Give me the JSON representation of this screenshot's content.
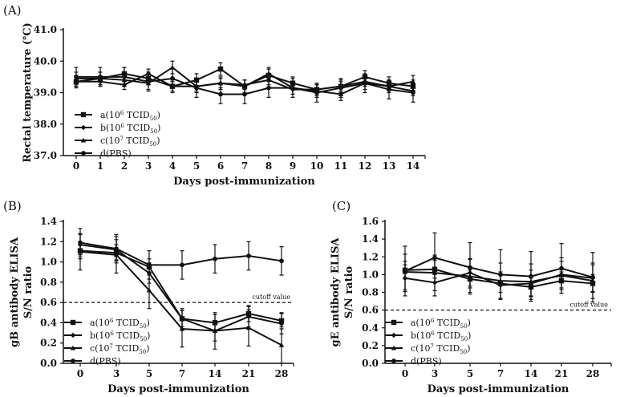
{
  "legend": [
    {
      "id": "a",
      "prefix": "a(10",
      "exp": "6",
      "mid": " TCID",
      "sub": "50",
      "suffix": ")",
      "marker": "square"
    },
    {
      "id": "b",
      "prefix": "b(10",
      "exp": "6",
      "mid": " TCID",
      "sub": "50",
      "suffix": ")",
      "marker": "diamond"
    },
    {
      "id": "c",
      "prefix": "c(10",
      "exp": "7",
      "mid": " TCID",
      "sub": "50",
      "suffix": ")",
      "marker": "triangle"
    },
    {
      "id": "d",
      "prefix": "d(PBS)",
      "exp": "",
      "mid": "",
      "sub": "",
      "suffix": "",
      "marker": "circle"
    }
  ],
  "chart_data": [
    {
      "panel": "(A)",
      "type": "line",
      "xlabel": "Days post-immunization",
      "ylabel": "Rectal temperature (℃)",
      "categories": [
        "0",
        "1",
        "2",
        "3",
        "4",
        "5",
        "6",
        "7",
        "8",
        "9",
        "10",
        "11",
        "12",
        "13",
        "14"
      ],
      "ylim": [
        37.0,
        41.0
      ],
      "yticks": [
        "37.0",
        "38.0",
        "39.0",
        "40.0",
        "41.0"
      ],
      "series": [
        {
          "name": "a",
          "values": [
            39.35,
            39.45,
            39.6,
            39.45,
            39.2,
            39.4,
            39.75,
            39.2,
            39.55,
            39.3,
            39.1,
            39.2,
            39.5,
            39.3,
            39.2
          ],
          "err": 0.2
        },
        {
          "name": "b",
          "values": [
            39.35,
            39.35,
            39.25,
            39.6,
            39.2,
            39.2,
            39.3,
            39.25,
            39.4,
            39.1,
            39.1,
            39.2,
            39.35,
            39.2,
            39.05
          ],
          "err": 0.15
        },
        {
          "name": "c",
          "values": [
            39.45,
            39.45,
            39.4,
            39.3,
            39.8,
            39.2,
            39.3,
            39.2,
            39.6,
            39.15,
            39.05,
            38.95,
            39.3,
            39.2,
            39.35
          ],
          "err": 0.2
        },
        {
          "name": "d",
          "values": [
            39.5,
            39.5,
            39.5,
            39.35,
            39.45,
            39.15,
            38.95,
            38.95,
            39.15,
            39.15,
            39.0,
            39.15,
            39.3,
            39.1,
            39.0
          ],
          "err": 0.3
        }
      ]
    },
    {
      "panel": "(B)",
      "type": "line",
      "xlabel": "Days post-immunization",
      "ylabel": [
        "gB antibody ELISA",
        "S/N ratio"
      ],
      "categories": [
        "0",
        "3",
        "5",
        "7",
        "14",
        "21",
        "28"
      ],
      "ylim": [
        0.0,
        1.4
      ],
      "yticks": [
        "0.0",
        "0.2",
        "0.4",
        "0.6",
        "0.8",
        "1.0",
        "1.2",
        "1.4"
      ],
      "cutoff": {
        "value": 0.6,
        "label": "cutoff value"
      },
      "series": [
        {
          "name": "a",
          "values": [
            1.11,
            1.09,
            0.95,
            0.44,
            0.4,
            0.49,
            0.42
          ],
          "err": 0.08
        },
        {
          "name": "b",
          "values": [
            1.17,
            1.12,
            0.89,
            0.44,
            0.32,
            0.46,
            0.39
          ],
          "err": 0.1
        },
        {
          "name": "c",
          "values": [
            1.1,
            1.07,
            0.72,
            0.34,
            0.32,
            0.35,
            0.18
          ],
          "err": 0.18
        },
        {
          "name": "d",
          "values": [
            1.19,
            1.13,
            0.97,
            0.97,
            1.03,
            1.06,
            1.01
          ],
          "err": 0.14
        }
      ]
    },
    {
      "panel": "(C)",
      "type": "line",
      "xlabel": "Days post-immunization",
      "ylabel": [
        "gE antibody ELISA",
        "S/N ratio"
      ],
      "categories": [
        "0",
        "3",
        "5",
        "7",
        "14",
        "21",
        "28"
      ],
      "ylim": [
        0.0,
        1.6
      ],
      "yticks": [
        "0.0",
        "0.2",
        "0.4",
        "0.6",
        "0.8",
        "1.0",
        "1.2",
        "1.4",
        "1.6"
      ],
      "cutoff": {
        "value": 0.6,
        "label": "cutoff value"
      },
      "series": [
        {
          "name": "a",
          "values": [
            1.05,
            1.06,
            0.95,
            0.9,
            0.86,
            0.93,
            0.9
          ],
          "err": 0.1
        },
        {
          "name": "b",
          "values": [
            0.96,
            0.91,
            1.02,
            0.88,
            0.9,
            1.0,
            0.96
          ],
          "err": 0.15
        },
        {
          "name": "c",
          "values": [
            1.03,
            1.02,
            0.98,
            0.93,
            0.92,
            0.99,
            0.93
          ],
          "err": 0.2
        },
        {
          "name": "d",
          "values": [
            1.04,
            1.19,
            1.08,
            1.0,
            0.98,
            1.07,
            0.97
          ],
          "err": 0.28
        }
      ]
    }
  ]
}
